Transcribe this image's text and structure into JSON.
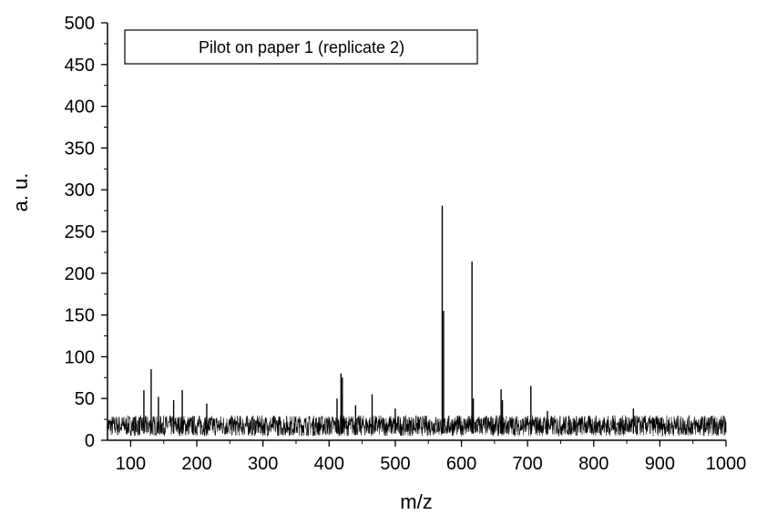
{
  "chart_data": {
    "type": "line",
    "legend": "Pilot on paper 1 (replicate 2)",
    "legend_position": "top-left",
    "xlabel": "m/z",
    "ylabel": "a. u.",
    "xlim": [
      65,
      1000
    ],
    "ylim": [
      0,
      500
    ],
    "xticks": [
      100,
      200,
      300,
      400,
      500,
      600,
      700,
      800,
      900,
      1000
    ],
    "yticks": [
      0,
      50,
      100,
      150,
      200,
      250,
      300,
      350,
      400,
      450,
      500
    ],
    "grid": false,
    "baseline_noise_range": [
      5,
      30
    ],
    "peaks": [
      {
        "x": 120,
        "y": 60
      },
      {
        "x": 131,
        "y": 85
      },
      {
        "x": 142,
        "y": 52
      },
      {
        "x": 165,
        "y": 48
      },
      {
        "x": 178,
        "y": 60
      },
      {
        "x": 215,
        "y": 44
      },
      {
        "x": 412,
        "y": 50
      },
      {
        "x": 418,
        "y": 80
      },
      {
        "x": 420,
        "y": 75
      },
      {
        "x": 440,
        "y": 42
      },
      {
        "x": 465,
        "y": 55
      },
      {
        "x": 500,
        "y": 38
      },
      {
        "x": 571,
        "y": 281
      },
      {
        "x": 573,
        "y": 155
      },
      {
        "x": 616,
        "y": 214
      },
      {
        "x": 618,
        "y": 50
      },
      {
        "x": 660,
        "y": 61
      },
      {
        "x": 662,
        "y": 48
      },
      {
        "x": 705,
        "y": 65
      },
      {
        "x": 730,
        "y": 35
      },
      {
        "x": 860,
        "y": 38
      }
    ]
  }
}
